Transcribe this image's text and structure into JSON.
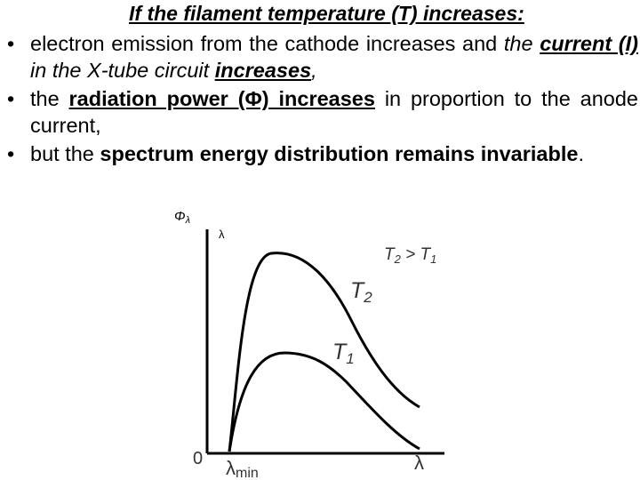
{
  "heading": "If the filament temperature (T) increases:",
  "bullets": [
    [
      "electron emission from the cathode increases and ",
      "the ",
      "current (I)",
      " in the X-tube circuit ",
      "increases",
      ","
    ],
    [
      "the ",
      "radiation power (Φ) increases",
      " in proportion to the anode current,"
    ],
    [
      "but the ",
      "spectrum energy distribution remains invariable",
      "."
    ]
  ],
  "diagram": {
    "y_axis_label": {
      "main": "Φ",
      "sub": "λ"
    },
    "y_axis_mark": "λ",
    "relation": {
      "left": "T",
      "left_sub": "2",
      "op": " > ",
      "right": "T",
      "right_sub": "1"
    },
    "curve_hot": {
      "main": "T",
      "sub": "2"
    },
    "curve_cold": {
      "main": "T",
      "sub": "1"
    },
    "origin": "0",
    "x_min_label": {
      "main": "λ",
      "sub": "min"
    },
    "x_axis_label": "λ"
  }
}
